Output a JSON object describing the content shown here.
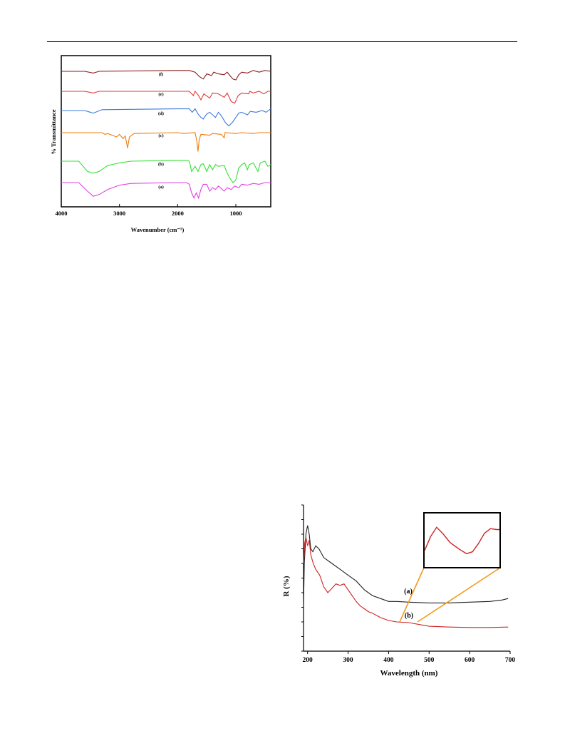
{
  "chart_data": [
    {
      "type": "line",
      "xlabel": "Wavenumber (cm⁻¹)",
      "ylabel": "% Transmittance",
      "xlim": [
        4000,
        400
      ],
      "x_ticks": [
        "4000",
        "3000",
        "2000",
        "1000"
      ],
      "x_tick_values": [
        4000,
        3000,
        2000,
        1000
      ],
      "grid": false,
      "series": [
        {
          "name": "(f)",
          "color": "#8b1a1a",
          "offset": 5,
          "points": [
            [
              4000,
              0
            ],
            [
              3600,
              0
            ],
            [
              3450,
              -2
            ],
            [
              3350,
              0
            ],
            [
              2000,
              1
            ],
            [
              1800,
              1
            ],
            [
              1700,
              -1
            ],
            [
              1630,
              -6
            ],
            [
              1560,
              -9
            ],
            [
              1500,
              -3
            ],
            [
              1420,
              -5
            ],
            [
              1380,
              -1
            ],
            [
              1300,
              -3
            ],
            [
              1200,
              -4
            ],
            [
              1150,
              -1
            ],
            [
              1100,
              -5
            ],
            [
              1050,
              -9
            ],
            [
              1000,
              -10
            ],
            [
              950,
              -4
            ],
            [
              900,
              -1
            ],
            [
              800,
              -2
            ],
            [
              700,
              1
            ],
            [
              600,
              -1
            ],
            [
              500,
              1
            ],
            [
              400,
              0
            ]
          ]
        },
        {
          "name": "(e)",
          "color": "#e23b3b",
          "offset": 4,
          "points": [
            [
              4000,
              0
            ],
            [
              3600,
              0
            ],
            [
              3450,
              -2
            ],
            [
              3350,
              0
            ],
            [
              2000,
              0
            ],
            [
              1800,
              0
            ],
            [
              1730,
              -5
            ],
            [
              1700,
              0
            ],
            [
              1650,
              -4
            ],
            [
              1600,
              -10
            ],
            [
              1550,
              -3
            ],
            [
              1450,
              -8
            ],
            [
              1400,
              -2
            ],
            [
              1300,
              -3
            ],
            [
              1200,
              -7
            ],
            [
              1150,
              -2
            ],
            [
              1080,
              -12
            ],
            [
              1020,
              -14
            ],
            [
              960,
              -5
            ],
            [
              900,
              -2
            ],
            [
              780,
              -3
            ],
            [
              760,
              0
            ],
            [
              700,
              -2
            ],
            [
              600,
              0
            ],
            [
              520,
              -3
            ],
            [
              450,
              0
            ],
            [
              400,
              0
            ]
          ]
        },
        {
          "name": "(d)",
          "color": "#3a78e0",
          "offset": 3,
          "points": [
            [
              4000,
              0
            ],
            [
              3600,
              0
            ],
            [
              3450,
              -3
            ],
            [
              3300,
              1
            ],
            [
              2000,
              2
            ],
            [
              1800,
              2
            ],
            [
              1750,
              -2
            ],
            [
              1700,
              2
            ],
            [
              1650,
              -4
            ],
            [
              1600,
              -8
            ],
            [
              1560,
              -10
            ],
            [
              1500,
              -4
            ],
            [
              1450,
              -2
            ],
            [
              1350,
              -8
            ],
            [
              1300,
              -2
            ],
            [
              1250,
              -6
            ],
            [
              1180,
              -14
            ],
            [
              1120,
              -18
            ],
            [
              1050,
              -13
            ],
            [
              1000,
              -8
            ],
            [
              950,
              -3
            ],
            [
              900,
              -2
            ],
            [
              800,
              -5
            ],
            [
              750,
              -1
            ],
            [
              650,
              -2
            ],
            [
              550,
              0
            ],
            [
              480,
              -2
            ],
            [
              400,
              2
            ]
          ]
        },
        {
          "name": "(c)",
          "color": "#f07c0c",
          "offset": 2,
          "points": [
            [
              4000,
              0
            ],
            [
              3300,
              0
            ],
            [
              3250,
              -2
            ],
            [
              3200,
              -1
            ],
            [
              3050,
              -5
            ],
            [
              3000,
              -2
            ],
            [
              2940,
              -7
            ],
            [
              2900,
              -4
            ],
            [
              2860,
              -18
            ],
            [
              2830,
              -5
            ],
            [
              2750,
              -1
            ],
            [
              2000,
              0
            ],
            [
              1900,
              -1
            ],
            [
              1700,
              0
            ],
            [
              1670,
              -10
            ],
            [
              1650,
              -22
            ],
            [
              1630,
              -8
            ],
            [
              1600,
              -2
            ],
            [
              1450,
              -3
            ],
            [
              1400,
              -1
            ],
            [
              1250,
              -2
            ],
            [
              1200,
              -6
            ],
            [
              1185,
              0
            ],
            [
              1000,
              -1
            ],
            [
              900,
              0
            ],
            [
              700,
              -1
            ],
            [
              600,
              0
            ],
            [
              400,
              0
            ]
          ]
        },
        {
          "name": "(b)",
          "color": "#33e033",
          "offset": 1,
          "points": [
            [
              4000,
              0
            ],
            [
              3700,
              0
            ],
            [
              3550,
              -12
            ],
            [
              3450,
              -14
            ],
            [
              3350,
              -12
            ],
            [
              3200,
              -5
            ],
            [
              3000,
              -2
            ],
            [
              2800,
              0
            ],
            [
              2000,
              1
            ],
            [
              1850,
              1
            ],
            [
              1800,
              0
            ],
            [
              1760,
              -12
            ],
            [
              1700,
              -6
            ],
            [
              1650,
              -12
            ],
            [
              1600,
              -4
            ],
            [
              1560,
              -3
            ],
            [
              1500,
              -12
            ],
            [
              1450,
              -4
            ],
            [
              1400,
              -10
            ],
            [
              1350,
              -4
            ],
            [
              1300,
              -6
            ],
            [
              1200,
              -5
            ],
            [
              1150,
              -14
            ],
            [
              1100,
              -20
            ],
            [
              1050,
              -25
            ],
            [
              1000,
              -22
            ],
            [
              950,
              -8
            ],
            [
              900,
              -4
            ],
            [
              850,
              -2
            ],
            [
              800,
              -10
            ],
            [
              770,
              -4
            ],
            [
              700,
              -2
            ],
            [
              620,
              -12
            ],
            [
              580,
              -2
            ],
            [
              500,
              0
            ],
            [
              450,
              -6
            ],
            [
              400,
              -4
            ]
          ]
        },
        {
          "name": "(a)",
          "color": "#e040e0",
          "offset": 0,
          "points": [
            [
              4000,
              0
            ],
            [
              3700,
              0
            ],
            [
              3550,
              -10
            ],
            [
              3450,
              -16
            ],
            [
              3350,
              -14
            ],
            [
              3200,
              -8
            ],
            [
              3000,
              -3
            ],
            [
              2800,
              -1
            ],
            [
              2000,
              0
            ],
            [
              1850,
              0
            ],
            [
              1800,
              -2
            ],
            [
              1760,
              -12
            ],
            [
              1720,
              -18
            ],
            [
              1680,
              -12
            ],
            [
              1640,
              -18
            ],
            [
              1600,
              -8
            ],
            [
              1560,
              -2
            ],
            [
              1500,
              -2
            ],
            [
              1450,
              -10
            ],
            [
              1400,
              -6
            ],
            [
              1350,
              -8
            ],
            [
              1300,
              -4
            ],
            [
              1200,
              -10
            ],
            [
              1150,
              -6
            ],
            [
              1080,
              -8
            ],
            [
              1020,
              -4
            ],
            [
              950,
              -6
            ],
            [
              900,
              -2
            ],
            [
              800,
              -3
            ],
            [
              700,
              -1
            ],
            [
              600,
              -2
            ],
            [
              500,
              0
            ],
            [
              400,
              0
            ]
          ]
        }
      ]
    },
    {
      "type": "line",
      "xlabel": "Wavelength (nm)",
      "ylabel": "R (%)",
      "xlim": [
        190,
        700
      ],
      "x_ticks": [
        "200",
        "300",
        "400",
        "500",
        "600",
        "700"
      ],
      "x_tick_values": [
        200,
        300,
        400,
        500,
        600,
        700
      ],
      "ylim": [
        0,
        100
      ],
      "grid": false,
      "series": [
        {
          "name": "(a)",
          "color": "#222222",
          "points": [
            [
              190,
              30
            ],
            [
              192,
              60
            ],
            [
              196,
              80
            ],
            [
              200,
              86
            ],
            [
              204,
              80
            ],
            [
              208,
              70
            ],
            [
              213,
              68
            ],
            [
              220,
              72
            ],
            [
              228,
              70
            ],
            [
              240,
              64
            ],
            [
              260,
              60
            ],
            [
              280,
              56
            ],
            [
              300,
              52
            ],
            [
              320,
              48
            ],
            [
              340,
              42
            ],
            [
              360,
              38
            ],
            [
              380,
              36
            ],
            [
              400,
              34
            ],
            [
              420,
              34
            ],
            [
              450,
              33.5
            ],
            [
              500,
              33
            ],
            [
              550,
              33
            ],
            [
              600,
              33.5
            ],
            [
              650,
              34
            ],
            [
              680,
              35
            ],
            [
              695,
              36
            ]
          ]
        },
        {
          "name": "(b)",
          "color": "#cc2222",
          "points": [
            [
              190,
              60
            ],
            [
              193,
              74
            ],
            [
              196,
              78
            ],
            [
              200,
              72
            ],
            [
              204,
              76
            ],
            [
              208,
              66
            ],
            [
              214,
              60
            ],
            [
              220,
              56
            ],
            [
              230,
              52
            ],
            [
              240,
              44
            ],
            [
              250,
              40
            ],
            [
              260,
              43
            ],
            [
              270,
              46
            ],
            [
              280,
              45
            ],
            [
              290,
              46
            ],
            [
              300,
              42
            ],
            [
              310,
              38
            ],
            [
              320,
              34
            ],
            [
              330,
              31
            ],
            [
              340,
              29
            ],
            [
              350,
              27
            ],
            [
              360,
              26
            ],
            [
              380,
              23
            ],
            [
              400,
              21
            ],
            [
              420,
              20
            ],
            [
              450,
              19.5
            ],
            [
              480,
              18
            ],
            [
              500,
              17
            ],
            [
              550,
              16.5
            ],
            [
              600,
              16.2
            ],
            [
              650,
              16.2
            ],
            [
              695,
              16.5
            ]
          ]
        }
      ],
      "labels": [
        "(a)",
        "(b)"
      ],
      "inset": {
        "color": "#cc2222",
        "points": [
          [
            0,
            0.25
          ],
          [
            0.08,
            0.55
          ],
          [
            0.16,
            0.75
          ],
          [
            0.24,
            0.62
          ],
          [
            0.34,
            0.42
          ],
          [
            0.46,
            0.28
          ],
          [
            0.56,
            0.18
          ],
          [
            0.64,
            0.22
          ],
          [
            0.72,
            0.4
          ],
          [
            0.8,
            0.62
          ],
          [
            0.88,
            0.72
          ],
          [
            0.96,
            0.7
          ],
          [
            1,
            0.7
          ]
        ]
      }
    }
  ]
}
